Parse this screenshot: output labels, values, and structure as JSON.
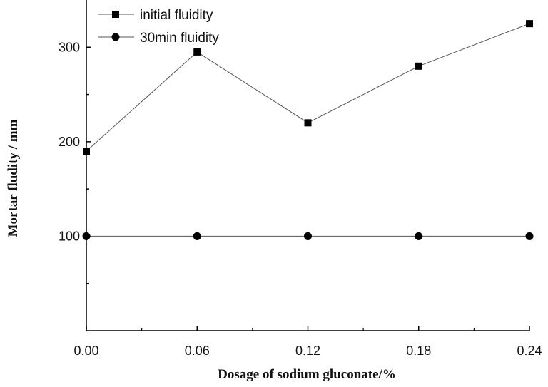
{
  "chart_data": {
    "type": "line",
    "title": "",
    "xlabel": "Dosage of sodium gluconate/%",
    "ylabel": "Mortar fludity / mm",
    "x": [
      0.0,
      0.06,
      0.12,
      0.18,
      0.24
    ],
    "x_tick_labels": [
      "0.00",
      "0.06",
      "0.12",
      "0.18",
      "0.24"
    ],
    "xlim": [
      0,
      0.24
    ],
    "y_ticks": [
      100,
      200,
      300
    ],
    "y_tick_labels": [
      "100",
      "200",
      "300"
    ],
    "ylim": [
      0,
      350
    ],
    "grid": false,
    "legend_position": "top-left",
    "series": [
      {
        "name": "initial fluidity",
        "marker": "square",
        "values": [
          190,
          295,
          220,
          280,
          325
        ]
      },
      {
        "name": "30min fluidity",
        "marker": "circle",
        "values": [
          100,
          100,
          100,
          100,
          100
        ]
      }
    ]
  },
  "colors": {
    "line": "#555555",
    "marker": "#000000",
    "axis": "#000000"
  }
}
